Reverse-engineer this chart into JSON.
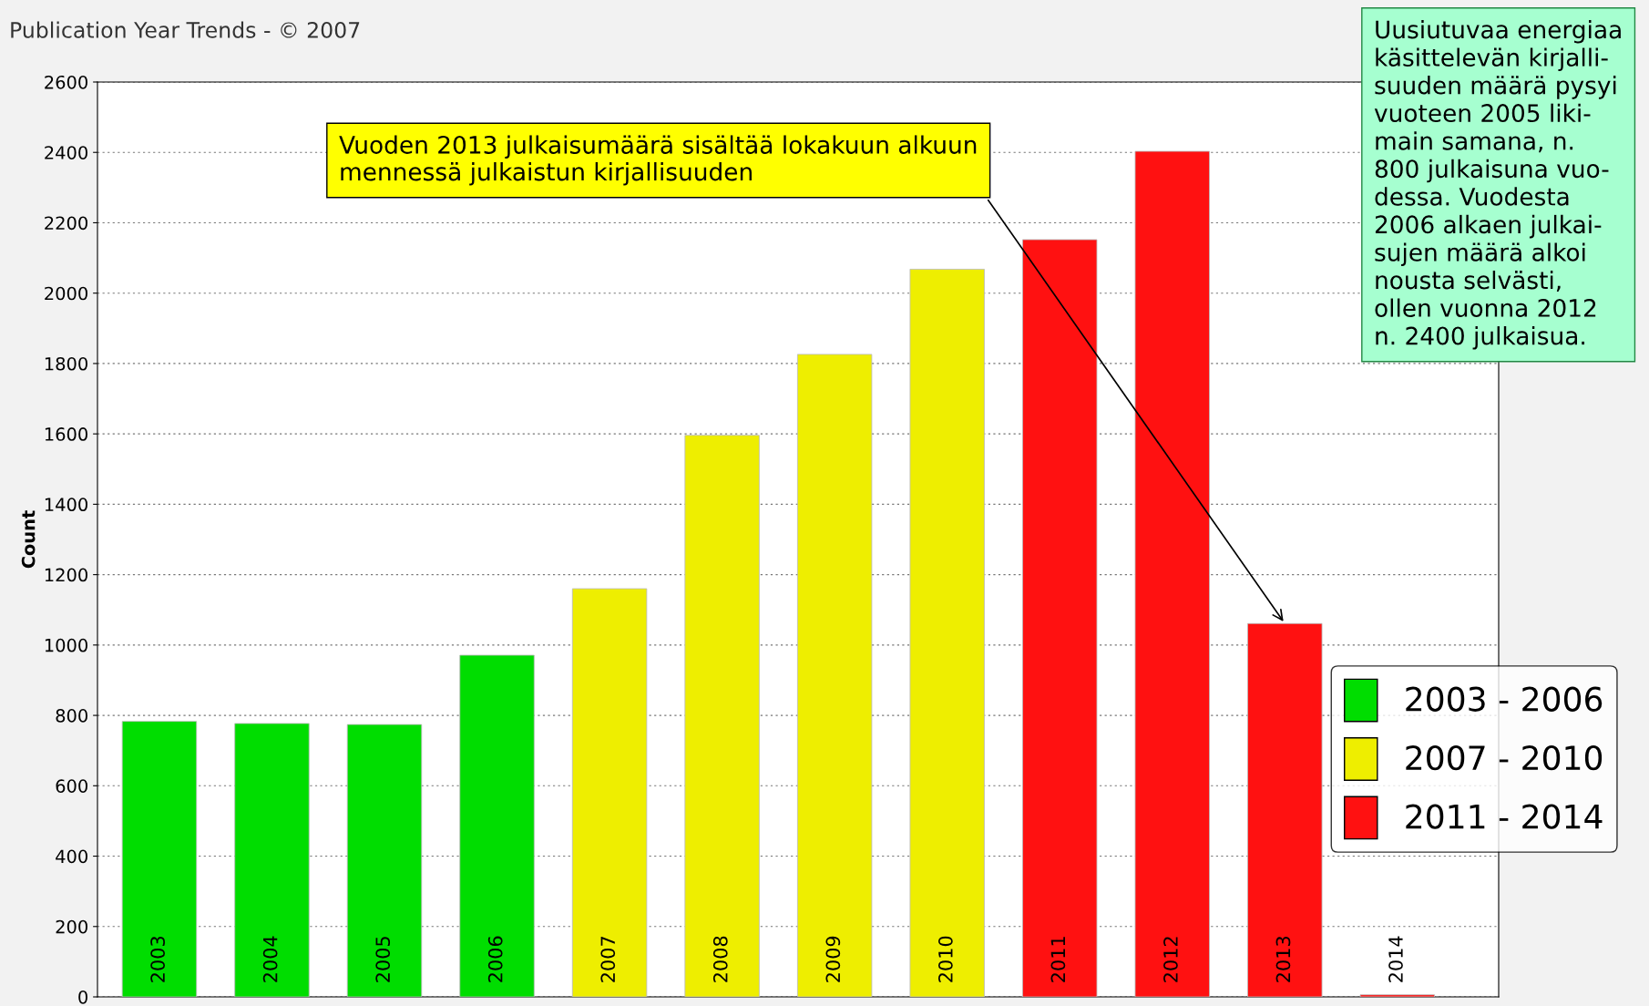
{
  "chart_data": {
    "type": "bar",
    "title": "Publication Year Trends - © 2007",
    "ylabel": "Count",
    "categories": [
      "2003",
      "2004",
      "2005",
      "2006",
      "2007",
      "2008",
      "2009",
      "2010",
      "2011",
      "2012",
      "2013",
      "2014"
    ],
    "series": [
      {
        "name": "2003 - 2006",
        "color": "#00dd00",
        "values": [
          783,
          777,
          774,
          971,
          null,
          null,
          null,
          null,
          null,
          null,
          null,
          null
        ]
      },
      {
        "name": "2007 - 2010",
        "color": "#eeee00",
        "values": [
          null,
          null,
          null,
          null,
          1160,
          1596,
          1826,
          2068,
          null,
          null,
          null,
          null
        ]
      },
      {
        "name": "2011 - 2014",
        "color": "#ff1111",
        "values": [
          null,
          null,
          null,
          null,
          null,
          null,
          null,
          null,
          2152,
          2403,
          1061,
          6
        ]
      }
    ],
    "ylim": [
      0,
      2600
    ],
    "yticks": [
      0,
      200,
      400,
      600,
      800,
      1000,
      1200,
      1400,
      1600,
      1800,
      2000,
      2200,
      2400,
      2600
    ],
    "grid": "y",
    "legend": "right",
    "annotations": [
      {
        "text": "Vuoden 2013 julkaisumäärä sisältää lokakuun alkuun\nmennessä julkaistun kirjallisuuden",
        "x": "2013",
        "y": 1061
      },
      "Uusiutuvaa energiaa\nkäsittelevän kirjalli-\nsuuden määrä pysyi\nvuoteen 2005 liki-\nmain samana, n.\n800 julkaisuna vuo-\ndessa. Vuodesta\n2006 alkaen julkai-\nsujen määrä alkoi\nnousta selvästi,\nollen vuonna 2012\nn. 2400 julkaisua."
    ]
  }
}
